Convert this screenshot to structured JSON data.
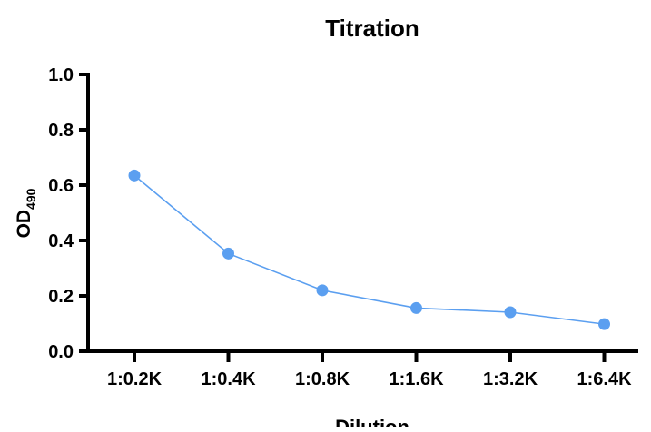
{
  "chart_data": {
    "type": "line",
    "title": "Titration",
    "xlabel": "Dilution",
    "ylabel": "OD",
    "ylabel_subscript": "490",
    "categories": [
      "1:0.2K",
      "1:0.4K",
      "1:0.8K",
      "1:1.6K",
      "1:3.2K",
      "1:6.4K"
    ],
    "series": [
      {
        "values": [
          0.635,
          0.353,
          0.22,
          0.156,
          0.141,
          0.098
        ],
        "color": "#5b9ff0"
      }
    ],
    "ylim": [
      0,
      1.0
    ],
    "yticks": [
      "0.0",
      "0.2",
      "0.4",
      "0.6",
      "0.8",
      "1.0"
    ],
    "grid": false,
    "legend": "none"
  }
}
